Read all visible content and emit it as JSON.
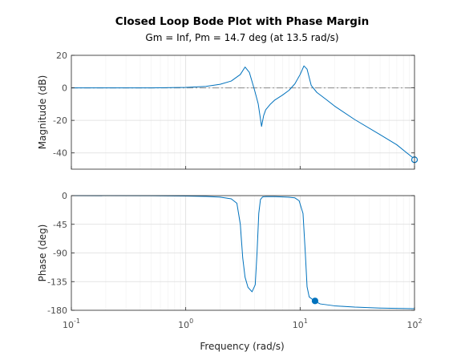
{
  "chart_data": {
    "type": "line",
    "title": "Closed Loop Bode Plot with Phase Margin",
    "subtitle": "Gm = Inf,  Pm = 14.7 deg (at 13.5 rad/s)",
    "xlabel": "Frequency (rad/s)",
    "x_scale": "log",
    "xlim": [
      0.1,
      100
    ],
    "x_ticks": [
      {
        "value": 0.1,
        "base": "10",
        "exp": "-1"
      },
      {
        "value": 1,
        "base": "10",
        "exp": "0"
      },
      {
        "value": 10,
        "base": "10",
        "exp": "1"
      },
      {
        "value": 100,
        "base": "10",
        "exp": "2"
      }
    ],
    "grid": true,
    "line_color": "#0072bd",
    "panels": [
      {
        "name": "magnitude",
        "ylabel": "Magnitude (dB)",
        "ylim": [
          -50,
          20
        ],
        "yticks": [
          20,
          0,
          -20,
          -40
        ],
        "reference_line": {
          "y": 0,
          "style": "dash-dot"
        },
        "series": {
          "x": [
            0.1,
            0.5,
            1,
            1.5,
            2,
            2.5,
            3,
            3.3,
            3.6,
            4.0,
            4.3,
            4.6,
            4.8,
            5.0,
            5.5,
            6,
            7,
            8,
            9,
            10,
            10.8,
            11.5,
            12.5,
            14,
            17,
            20,
            30,
            50,
            70,
            100
          ],
          "y": [
            0,
            0,
            0.3,
            0.9,
            2.2,
            4.2,
            8.2,
            12.8,
            9.5,
            -1.5,
            -9.8,
            -23.7,
            -17,
            -13.5,
            -10,
            -7.5,
            -4.5,
            -1.5,
            2.5,
            8.2,
            13.5,
            11.5,
            1.5,
            -2.8,
            -7.3,
            -11.2,
            -19.5,
            -28.8,
            -35,
            -43.8
          ]
        },
        "marker": {
          "x": 100,
          "y": -44.2,
          "style": "open-circle"
        }
      },
      {
        "name": "phase",
        "ylabel": "Phase (deg)",
        "ylim": [
          -180,
          0
        ],
        "yticks": [
          0,
          -45,
          -90,
          -135,
          -180
        ],
        "series": {
          "x": [
            0.1,
            0.5,
            1,
            1.5,
            2,
            2.5,
            2.8,
            3.0,
            3.15,
            3.3,
            3.5,
            3.8,
            4.05,
            4.2,
            4.35,
            4.5,
            4.7,
            5.0,
            5.5,
            6,
            7,
            8,
            9,
            9.8,
            10.6,
            11.1,
            11.5,
            12,
            13.5,
            15,
            20,
            30,
            50,
            100
          ],
          "y": [
            0,
            -0.2,
            -0.6,
            -1.3,
            -2.3,
            -5,
            -12,
            -45,
            -98,
            -128,
            -144,
            -151,
            -140,
            -90,
            -28,
            -6,
            -2,
            -1.5,
            -1.5,
            -1.5,
            -2,
            -2.5,
            -3.5,
            -8,
            -28,
            -90,
            -143,
            -159,
            -166,
            -170,
            -173,
            -175,
            -176.5,
            -177.5
          ]
        },
        "marker": {
          "x": 13.5,
          "y": -165.3,
          "style": "filled-circle"
        }
      }
    ]
  }
}
